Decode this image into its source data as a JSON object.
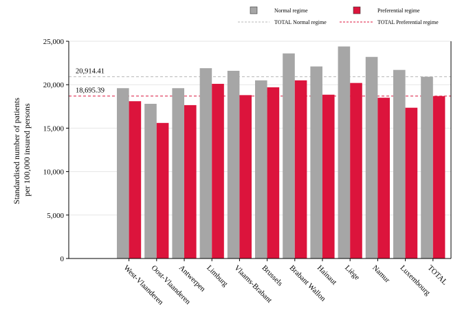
{
  "chart_data": {
    "type": "bar",
    "categories": [
      "West-Vlaanderen",
      "Oost-Vlaanderen",
      "Antwerpen",
      "Limburg",
      "Vlaams-Brabant",
      "Brussels",
      "Brabant Wallon",
      "Hainaut",
      "Liège",
      "Namur",
      "Luxembourg",
      "TOTAL"
    ],
    "series": [
      {
        "name": "Normal regime",
        "color": "#a6a6a6",
        "values": [
          19600,
          17800,
          19600,
          21900,
          21600,
          20500,
          23600,
          22100,
          24400,
          23200,
          21700,
          20914.41
        ]
      },
      {
        "name": "Preferential regime",
        "color": "#dc143c",
        "values": [
          18100,
          15600,
          17650,
          20100,
          18800,
          19700,
          20500,
          18850,
          20200,
          18500,
          17350,
          18695.39
        ]
      }
    ],
    "reference_lines": [
      {
        "name": "TOTAL Normal regime",
        "value": 20914.41,
        "label": "20,914.41",
        "color": "#b8b8b8"
      },
      {
        "name": "TOTAL Preferential regime",
        "value": 18695.39,
        "label": "18,695.39",
        "color": "#dc143c"
      }
    ],
    "ylabel_lines": [
      "Standardised number of patients",
      "per 100,000 insured persons"
    ],
    "ylim": [
      0,
      25000
    ],
    "yticks": [
      0,
      5000,
      10000,
      15000,
      20000,
      25000
    ],
    "ytick_labels": [
      "0",
      "5,000",
      "10,000",
      "15,000",
      "20,000",
      "25,000"
    ],
    "grid": "horizontal",
    "legend_position": "top-right"
  }
}
